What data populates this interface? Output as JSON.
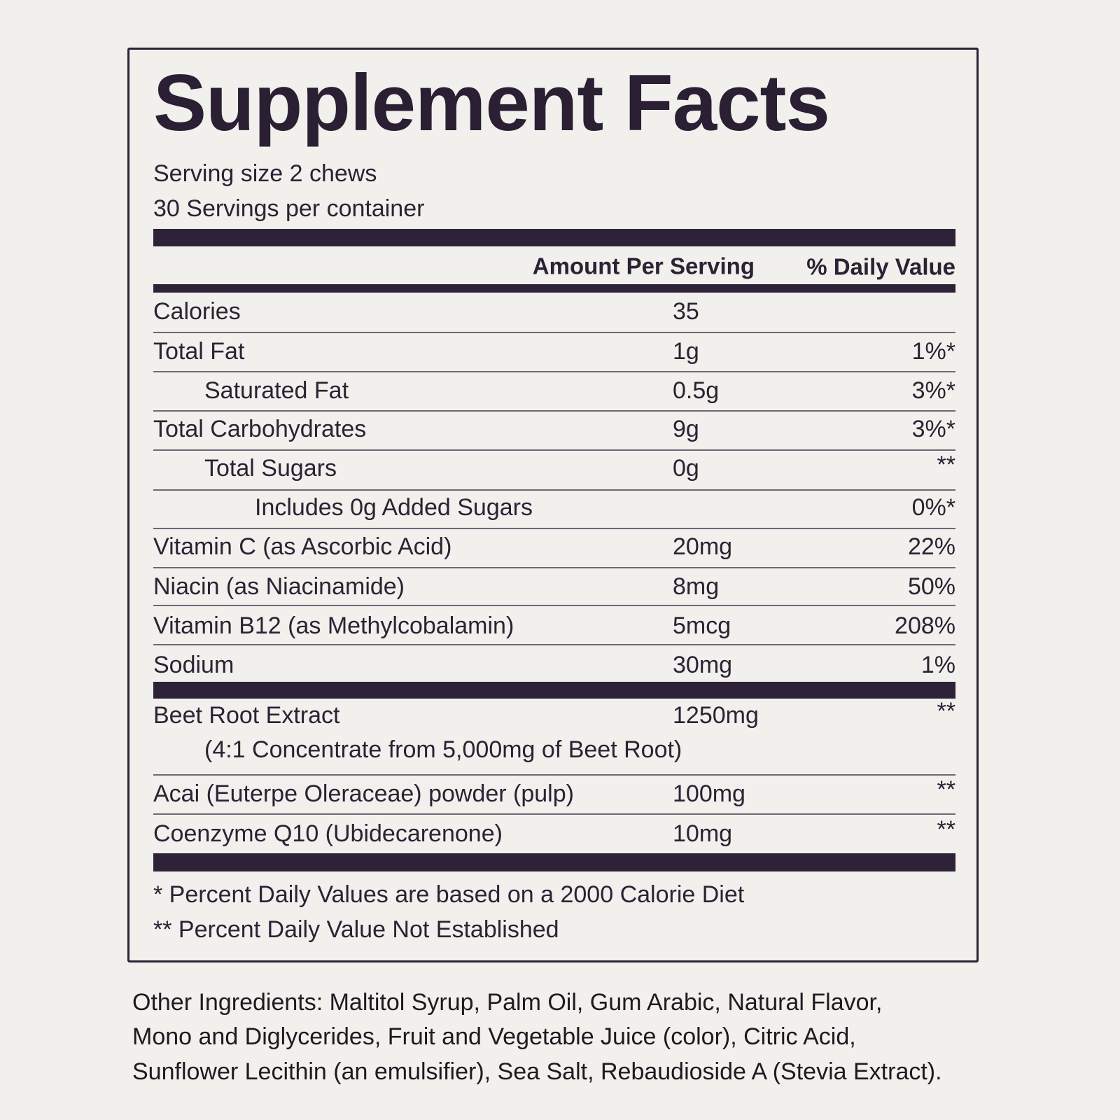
{
  "title": "Supplement Facts",
  "serving_size": "Serving size 2 chews",
  "servings_per_container": "30 Servings per container",
  "header": {
    "amount": "Amount Per Serving",
    "daily_value": "% Daily Value"
  },
  "rows": [
    {
      "name": "Calories",
      "amount": "35"
    },
    {
      "name": "Total Fat",
      "amount": "1g",
      "daily_value": "1%*"
    },
    {
      "name": "Saturated Fat",
      "amount": "0.5g",
      "daily_value": "3%*"
    },
    {
      "name": "Total Carbohydrates",
      "amount": "9g",
      "daily_value": "3%*"
    },
    {
      "name": "Total Sugars",
      "amount": "0g",
      "daily_value": "**"
    },
    {
      "name": "Includes 0g Added Sugars",
      "daily_value": "0%*"
    },
    {
      "name": "Vitamin C (as Ascorbic Acid)",
      "amount": "20mg",
      "daily_value": "22%"
    },
    {
      "name": "Niacin (as Niacinamide)",
      "amount": "8mg",
      "daily_value": "50%"
    },
    {
      "name": "Vitamin B12 (as Methylcobalamin)",
      "amount": "5mcg",
      "daily_value": "208%"
    },
    {
      "name": "Sodium",
      "amount": "30mg",
      "daily_value": "1%"
    }
  ],
  "extracts": [
    {
      "name": "Beet Root Extract",
      "amount": "1250mg",
      "daily_value": "**",
      "note": "(4:1 Concentrate from 5,000mg of Beet Root)"
    },
    {
      "name": "Acai (Euterpe Oleraceae) powder (pulp)",
      "amount": "100mg",
      "daily_value": "**"
    },
    {
      "name": "Coenzyme Q10 (Ubidecarenone)",
      "amount": "10mg",
      "daily_value": "**"
    }
  ],
  "footnotes": [
    "* Percent Daily Values are based on a 2000 Calorie Diet",
    "** Percent Daily Value Not Established"
  ],
  "other_ingredients": [
    "Other Ingredients: Maltitol Syrup, Palm Oil, Gum Arabic, Natural Flavor,",
    "Mono and Diglycerides, Fruit and Vegetable Juice (color), Citric Acid,",
    "Sunflower Lecithin (an emulsifier), Sea Salt, Rebaudioside A (Stevia Extract)."
  ]
}
